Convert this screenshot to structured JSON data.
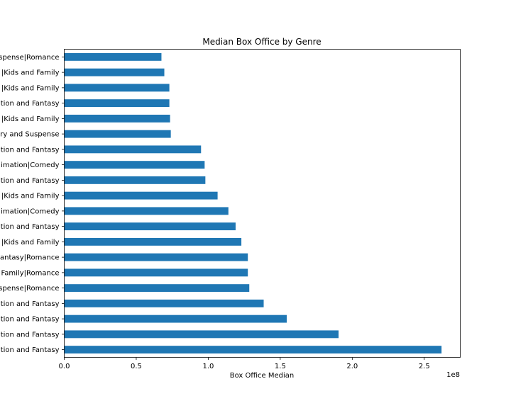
{
  "chart_data": {
    "type": "bar",
    "orientation": "horizontal",
    "title": "Median Box Office by Genre",
    "xlabel": "Box Office Median",
    "ylabel": "",
    "x_offset_text": "1e8",
    "xlim": [
      0,
      2.75
    ],
    "x_ticks": [
      "0.0",
      "0.5",
      "1.0",
      "1.5",
      "2.0",
      "2.5"
    ],
    "x_tick_values": [
      0,
      0.5,
      1.0,
      1.5,
      2.0,
      2.5
    ],
    "grid": false,
    "legend": "none",
    "bar_color": "#1f77b4",
    "categories": [
      "ation and Fantasy",
      "ation and Fantasy",
      "ation and Fantasy",
      "ation and Fantasy",
      "spense|Romance",
      "Family|Romance",
      "antasy|Romance",
      "|Kids and Family",
      "ation and Fantasy",
      "imation|Comedy",
      "|Kids and Family",
      "ation and Fantasy",
      "imation|Comedy",
      "ation and Fantasy",
      "ry and Suspense",
      "|Kids and Family",
      "ation and Fantasy",
      "|Kids and Family",
      "|Kids and Family",
      "spense|Romance"
    ],
    "values": [
      2.62,
      1.905,
      1.545,
      1.385,
      1.285,
      1.275,
      1.275,
      1.23,
      1.19,
      1.14,
      1.065,
      0.98,
      0.975,
      0.95,
      0.74,
      0.735,
      0.73,
      0.73,
      0.695,
      0.675
    ]
  }
}
